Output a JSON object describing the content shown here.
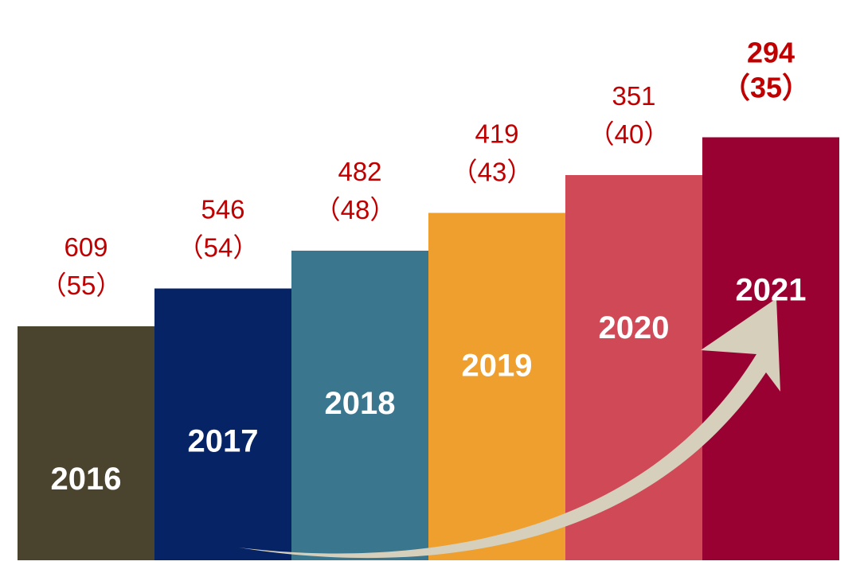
{
  "chart_data": {
    "type": "bar",
    "categories": [
      "2016",
      "2017",
      "2018",
      "2019",
      "2020",
      "2021"
    ],
    "values": [
      609,
      546,
      482,
      419,
      351,
      294
    ],
    "secondary_values": [
      55,
      54,
      48,
      43,
      40,
      35
    ],
    "value_labels": [
      "609",
      "546",
      "482",
      "419",
      "351",
      "294"
    ],
    "secondary_labels": [
      "（55）",
      "（54）",
      "（48）",
      "（43）",
      "（40）",
      "（35）"
    ],
    "bar_colors": [
      "#4a432d",
      "#062365",
      "#3a768e",
      "#ee9f2d",
      "#cf4957",
      "#9a0133"
    ],
    "label_color": "#c00000",
    "category_label_color": "#ffffff",
    "arrow_color": "#d5cfbb",
    "steps_ascending": true,
    "highlight_category": "2021",
    "grid": false,
    "legend": "none"
  }
}
